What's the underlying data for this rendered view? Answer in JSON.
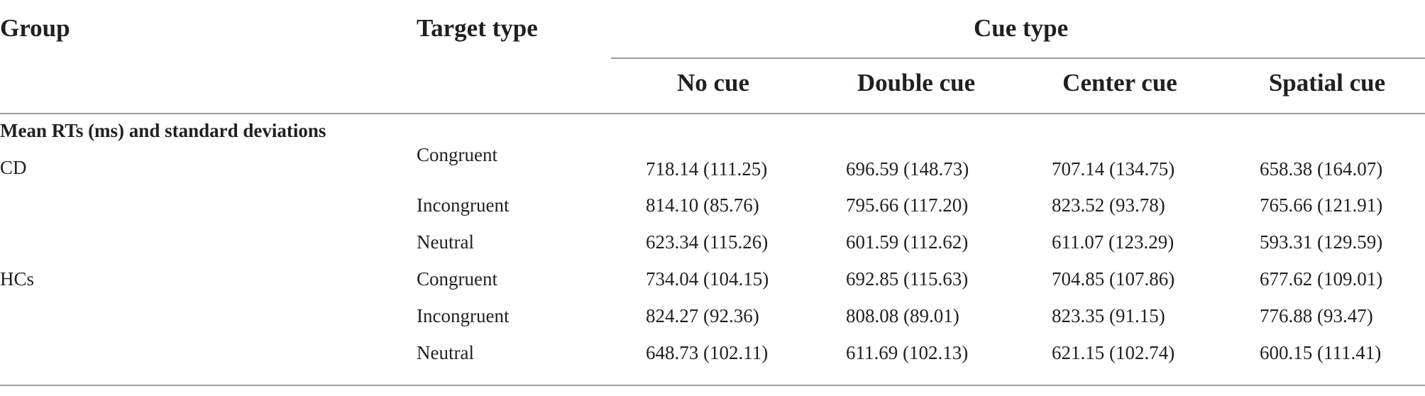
{
  "table": {
    "header": {
      "group": "Group",
      "target_type": "Target type",
      "cue_type": "Cue type",
      "cue_columns": [
        "No cue",
        "Double cue",
        "Center cue",
        "Spatial cue"
      ]
    },
    "section_title": "Mean RTs (ms) and standard deviations",
    "groups": [
      {
        "name": "CD",
        "rows": [
          {
            "target": "Congruent",
            "values": [
              "718.14 (111.25)",
              "696.59 (148.73)",
              "707.14 (134.75)",
              "658.38 (164.07)"
            ]
          },
          {
            "target": "Incongruent",
            "values": [
              "814.10 (85.76)",
              "795.66 (117.20)",
              "823.52 (93.78)",
              "765.66 (121.91)"
            ]
          },
          {
            "target": "Neutral",
            "values": [
              "623.34 (115.26)",
              "601.59 (112.62)",
              "611.07 (123.29)",
              "593.31 (129.59)"
            ]
          }
        ]
      },
      {
        "name": "HCs",
        "rows": [
          {
            "target": "Congruent",
            "values": [
              "734.04 (104.15)",
              "692.85 (115.63)",
              "704.85 (107.86)",
              "677.62 (109.01)"
            ]
          },
          {
            "target": "Incongruent",
            "values": [
              "824.27 (92.36)",
              "808.08 (89.01)",
              "823.35 (91.15)",
              "776.88 (93.47)"
            ]
          },
          {
            "target": "Neutral",
            "values": [
              "648.73 (102.11)",
              "611.69 (102.13)",
              "621.15 (102.74)",
              "600.15 (111.41)"
            ]
          }
        ]
      }
    ]
  }
}
